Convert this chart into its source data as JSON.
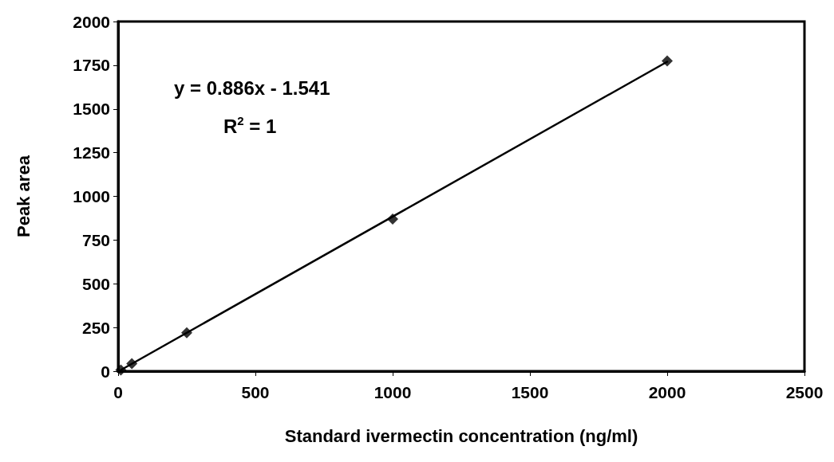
{
  "chart_data": {
    "type": "scatter",
    "xlabel": "Standard ivermectin concentration (ng/ml)",
    "ylabel": "Peak area",
    "marker": "diamond",
    "grid": false,
    "xlim": [
      0,
      2500
    ],
    "xticks": [
      0,
      500,
      1000,
      1500,
      2000,
      2500
    ],
    "ylim": [
      0,
      2000
    ],
    "yticks": [
      0,
      250,
      500,
      750,
      1000,
      1250,
      1500,
      1750,
      2000
    ],
    "annotations": [
      "y = 0.886x - 1.541",
      "R$^{2}$ = 1"
    ],
    "series": [
      {
        "color": "#000000",
        "x": [
          10,
          50,
          250,
          1000,
          2000
        ],
        "values": [
          7,
          43,
          220,
          870,
          1775
        ]
      },
      {
        "type": "line",
        "color": "#000000",
        "marker": "none",
        "line_style": "solid",
        "x": [
          10,
          2000
        ],
        "values": [
          7,
          1770
        ]
      }
    ]
  }
}
